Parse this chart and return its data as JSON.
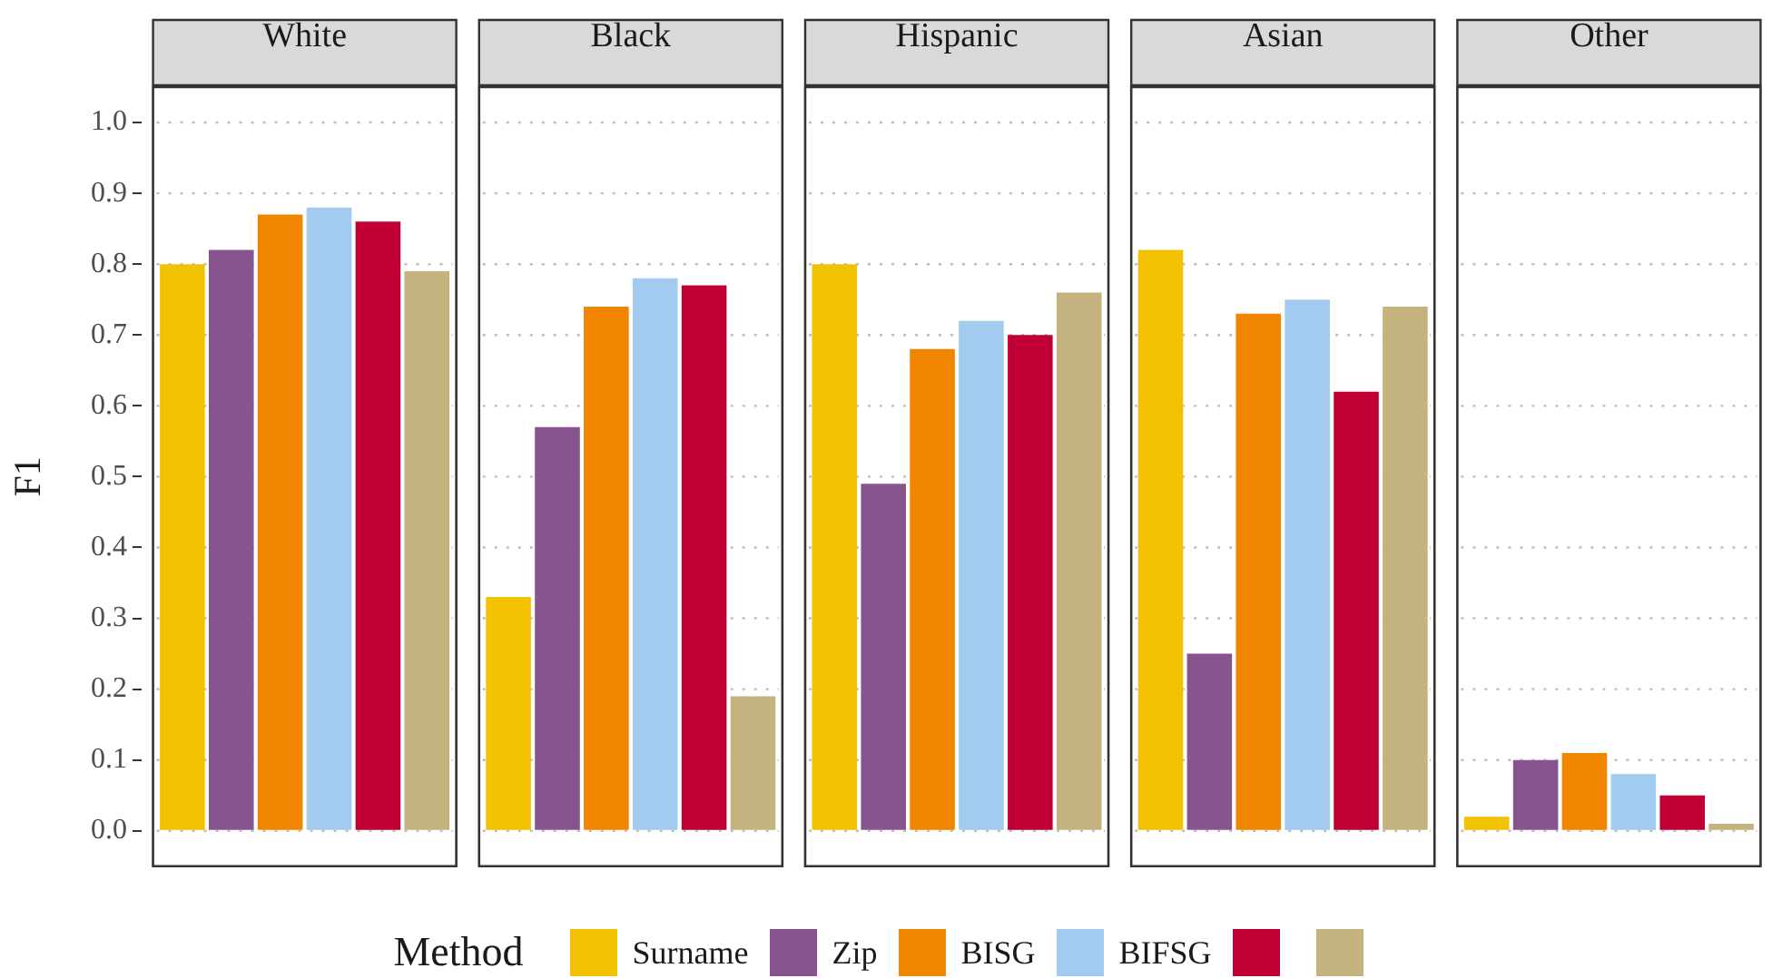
{
  "chart_data": {
    "type": "bar",
    "ylabel": "F1",
    "categories": [
      "White",
      "Black",
      "Hispanic",
      "Asian",
      "Other"
    ],
    "legend": "bottom",
    "legend_title": "Method",
    "grid": "y",
    "ylim": [
      -0.05,
      1.05
    ],
    "yticks": [
      {
        "value": 0,
        "label": "0.0"
      },
      0.1,
      0.2,
      0.3,
      0.4,
      0.5,
      0.6,
      0.7,
      0.8,
      0.9,
      {
        "value": 1,
        "label": "1.0"
      }
    ],
    "series": [
      {
        "name": "Surname",
        "color": "#f2c200",
        "values": [
          0.8,
          0.33,
          0.8,
          0.82,
          0.02
        ]
      },
      {
        "name": "Zip",
        "color": "#88548f",
        "values": [
          0.82,
          0.57,
          0.49,
          0.25,
          0.1
        ]
      },
      {
        "name": "BISG",
        "color": "#f28500",
        "values": [
          0.87,
          0.74,
          0.68,
          0.73,
          0.11
        ]
      },
      {
        "name": "BIFSG",
        "color": "#a3caef",
        "values": [
          0.88,
          0.78,
          0.72,
          0.75,
          0.08
        ]
      },
      {
        "color": "#c00034",
        "values": [
          0.86,
          0.77,
          0.7,
          0.62,
          0.05
        ]
      },
      {
        "color": "#c4b27f",
        "values": [
          0.79,
          0.19,
          0.76,
          0.74,
          0.01
        ]
      }
    ]
  }
}
